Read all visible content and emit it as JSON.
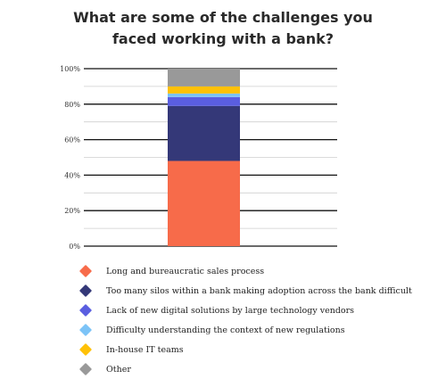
{
  "title_lines": [
    "What are some of the challenges you",
    "faced working with a bank?"
  ],
  "chart_data": {
    "type": "bar",
    "stacked": true,
    "title": "What are some of the challenges you faced working with a bank?",
    "ylim": [
      0,
      100
    ],
    "y_ticks": [
      "0%",
      "20%",
      "40%",
      "60%",
      "80%",
      "100%"
    ],
    "grid": true,
    "legend_position": "bottom",
    "series": [
      {
        "name": "Long and bureaucratic sales process",
        "value": 48,
        "color": "#f76b4a"
      },
      {
        "name": "Too many silos within a bank making adoption across the bank difficult",
        "value": 31,
        "color": "#343878"
      },
      {
        "name": "Lack of new digital solutions by large technology vendors",
        "value": 5,
        "color": "#5a5ee0"
      },
      {
        "name": "Difficulty understanding the context of new regulations",
        "value": 2,
        "color": "#7cc3f7"
      },
      {
        "name": "In-house IT teams",
        "value": 4,
        "color": "#ffc107"
      },
      {
        "name": "Other",
        "value": 10,
        "color": "#999999"
      }
    ]
  }
}
